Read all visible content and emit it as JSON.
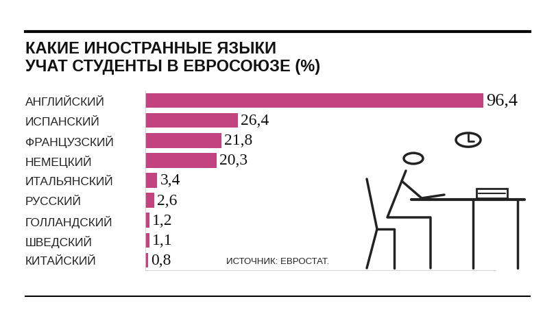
{
  "chart_data": {
    "type": "bar",
    "orientation": "horizontal",
    "title": "КАКИЕ ИНОСТРАННЫЕ ЯЗЫКИ\nУЧАТ СТУДЕНТЫ В ЕВРОСОЮЗЕ (%)",
    "source": "ИСТОЧНИК: ЕВРОСТАТ.",
    "categories": [
      "АНГЛИЙСКИЙ",
      "ИСПАНСКИЙ",
      "ФРАНЦУЗСКИЙ",
      "НЕМЕЦКИЙ",
      "ИТАЛЬЯНСКИЙ",
      "РУССКИЙ",
      "ГОЛЛАНДСКИЙ",
      "ШВЕДСКИЙ",
      "КИТАЙСКИЙ"
    ],
    "values": [
      96.4,
      26.4,
      21.8,
      20.3,
      3.4,
      2.6,
      1.2,
      1.1,
      0.8
    ],
    "value_labels": [
      "96,4",
      "26,4",
      "21,8",
      "20,3",
      "3,4",
      "2,6",
      "1,2",
      "1,1",
      "0,8"
    ],
    "color": "#c2437f",
    "xlim": [
      0,
      100
    ],
    "xticks": [],
    "grid": false,
    "data_labels": true,
    "tick_labels": "y"
  }
}
